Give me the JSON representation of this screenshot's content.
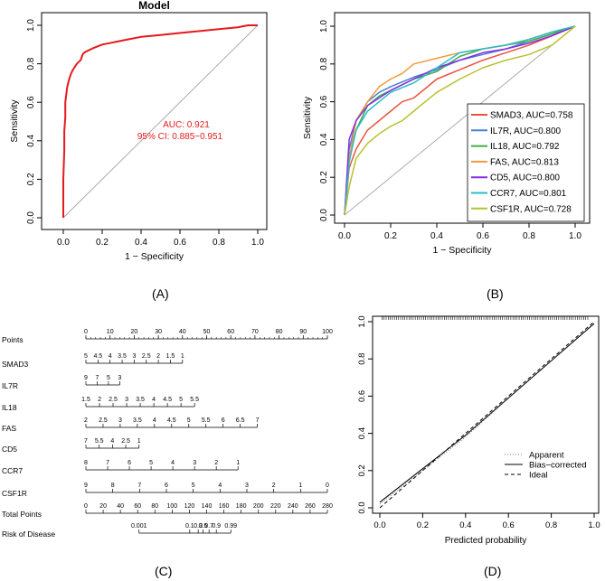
{
  "panel_labels": {
    "a": "(A)",
    "b": "(B)",
    "c": "(C)",
    "d": "(D)"
  },
  "chart_data": [
    {
      "id": "A",
      "type": "line",
      "title": "Model",
      "xlabel": "1 − Specificity",
      "ylabel": "Sensitivity",
      "xlim": [
        0,
        1
      ],
      "ylim": [
        0,
        1
      ],
      "xticks": [
        "0.0",
        "0.2",
        "0.4",
        "0.6",
        "0.8",
        "1.0"
      ],
      "yticks": [
        "0.0",
        "0.2",
        "0.4",
        "0.6",
        "0.8",
        "1.0"
      ],
      "series": [
        {
          "name": "Model",
          "color": "#e41a1c",
          "x": [
            0,
            0,
            0.005,
            0.005,
            0.01,
            0.01,
            0.02,
            0.03,
            0.04,
            0.05,
            0.07,
            0.09,
            0.1,
            0.11,
            0.15,
            0.2,
            0.25,
            0.3,
            0.35,
            0.4,
            0.5,
            0.6,
            0.7,
            0.8,
            0.9,
            0.95,
            1.0
          ],
          "y": [
            0,
            0.2,
            0.35,
            0.45,
            0.52,
            0.6,
            0.68,
            0.72,
            0.75,
            0.77,
            0.8,
            0.82,
            0.85,
            0.86,
            0.88,
            0.9,
            0.91,
            0.92,
            0.93,
            0.94,
            0.95,
            0.96,
            0.97,
            0.98,
            0.99,
            1.0,
            1.0
          ]
        }
      ],
      "annotations": {
        "auc": "AUC: 0.921",
        "ci": "95% CI: 0.885−0.951",
        "color": "#e41a1c"
      }
    },
    {
      "id": "B",
      "type": "line",
      "title": "",
      "xlabel": "1 − Specificity",
      "ylabel": "Sensitivity",
      "xlim": [
        0,
        1
      ],
      "ylim": [
        0,
        1
      ],
      "xticks": [
        "0.0",
        "0.2",
        "0.4",
        "0.6",
        "0.8",
        "1.0"
      ],
      "yticks": [
        "0.0",
        "0.2",
        "0.4",
        "0.6",
        "0.8",
        "1.0"
      ],
      "series": [
        {
          "name": "SMAD3, AUC=0.758",
          "color": "#e8533f",
          "x": [
            0,
            0.02,
            0.05,
            0.1,
            0.15,
            0.2,
            0.25,
            0.3,
            0.35,
            0.4,
            0.5,
            0.6,
            0.7,
            0.8,
            0.9,
            1.0
          ],
          "y": [
            0,
            0.25,
            0.35,
            0.45,
            0.5,
            0.55,
            0.6,
            0.62,
            0.67,
            0.72,
            0.77,
            0.82,
            0.86,
            0.9,
            0.95,
            1.0
          ]
        },
        {
          "name": "IL7R, AUC=0.800",
          "color": "#4a7fd6",
          "x": [
            0,
            0.02,
            0.05,
            0.1,
            0.15,
            0.2,
            0.3,
            0.4,
            0.5,
            0.6,
            0.7,
            0.8,
            0.9,
            1.0
          ],
          "y": [
            0,
            0.35,
            0.5,
            0.6,
            0.65,
            0.68,
            0.73,
            0.77,
            0.82,
            0.85,
            0.88,
            0.92,
            0.96,
            1.0
          ]
        },
        {
          "name": "IL18, AUC=0.792",
          "color": "#3fae49",
          "x": [
            0,
            0.02,
            0.05,
            0.1,
            0.15,
            0.2,
            0.3,
            0.4,
            0.5,
            0.6,
            0.7,
            0.8,
            0.9,
            1.0
          ],
          "y": [
            0,
            0.3,
            0.45,
            0.58,
            0.63,
            0.66,
            0.72,
            0.76,
            0.84,
            0.88,
            0.9,
            0.92,
            0.96,
            1.0
          ]
        },
        {
          "name": "FAS, AUC=0.813",
          "color": "#f29a3a",
          "x": [
            0,
            0.02,
            0.05,
            0.1,
            0.15,
            0.2,
            0.25,
            0.3,
            0.4,
            0.5,
            0.6,
            0.7,
            0.8,
            0.9,
            1.0
          ],
          "y": [
            0,
            0.3,
            0.5,
            0.6,
            0.68,
            0.72,
            0.75,
            0.8,
            0.83,
            0.86,
            0.88,
            0.9,
            0.93,
            0.97,
            1.0
          ]
        },
        {
          "name": "CD5, AUC=0.800",
          "color": "#8a2be2",
          "x": [
            0,
            0.02,
            0.05,
            0.1,
            0.15,
            0.2,
            0.3,
            0.4,
            0.5,
            0.6,
            0.7,
            0.8,
            0.9,
            1.0
          ],
          "y": [
            0,
            0.4,
            0.5,
            0.58,
            0.62,
            0.66,
            0.72,
            0.78,
            0.82,
            0.86,
            0.88,
            0.91,
            0.95,
            1.0
          ]
        },
        {
          "name": "CCR7, AUC=0.801",
          "color": "#2bbcc7",
          "x": [
            0,
            0.02,
            0.05,
            0.1,
            0.15,
            0.2,
            0.3,
            0.4,
            0.5,
            0.6,
            0.7,
            0.8,
            0.9,
            1.0
          ],
          "y": [
            0,
            0.28,
            0.45,
            0.55,
            0.6,
            0.65,
            0.7,
            0.78,
            0.86,
            0.88,
            0.9,
            0.93,
            0.97,
            1.0
          ]
        },
        {
          "name": "CSF1R, AUC=0.728",
          "color": "#b5c22e",
          "x": [
            0,
            0.02,
            0.05,
            0.1,
            0.15,
            0.2,
            0.25,
            0.3,
            0.35,
            0.4,
            0.5,
            0.6,
            0.7,
            0.8,
            0.9,
            1.0
          ],
          "y": [
            0,
            0.15,
            0.3,
            0.38,
            0.43,
            0.47,
            0.5,
            0.55,
            0.6,
            0.65,
            0.72,
            0.78,
            0.82,
            0.85,
            0.9,
            1.0
          ]
        }
      ]
    },
    {
      "id": "C",
      "type": "nomogram",
      "rows": [
        {
          "label": "Points",
          "ticks": [
            "0",
            "10",
            "20",
            "30",
            "40",
            "50",
            "60",
            "70",
            "80",
            "90",
            "100"
          ],
          "start": 0,
          "end": 100,
          "minor": true
        },
        {
          "label": "SMAD3",
          "ticks": [
            "5",
            "4.5",
            "4",
            "3.5",
            "3",
            "2.5",
            "2",
            "1.5",
            "1"
          ],
          "start": 0,
          "end": 40
        },
        {
          "label": "IL7R",
          "ticks": [
            "9",
            "7",
            "5",
            "3"
          ],
          "start": 0,
          "end": 14
        },
        {
          "label": "IL18",
          "ticks": [
            "1.5",
            "2",
            "2.5",
            "3",
            "3.5",
            "4",
            "4.5",
            "5",
            "5.5"
          ],
          "start": 0,
          "end": 45
        },
        {
          "label": "FAS",
          "ticks": [
            "2",
            "2.5",
            "3",
            "3.5",
            "4",
            "4.5",
            "5",
            "5.5",
            "6",
            "6.5",
            "7"
          ],
          "start": 0,
          "end": 71
        },
        {
          "label": "CD5",
          "ticks": [
            "7",
            "5.5",
            "4",
            "2.5",
            "1"
          ],
          "start": 0,
          "end": 22
        },
        {
          "label": "CCR7",
          "ticks": [
            "8",
            "7",
            "6",
            "5",
            "4",
            "3",
            "2",
            "1"
          ],
          "start": 0,
          "end": 63
        },
        {
          "label": "CSF1R",
          "ticks": [
            "9",
            "8",
            "7",
            "6",
            "5",
            "4",
            "3",
            "2",
            "1",
            "0"
          ],
          "start": 0,
          "end": 100
        },
        {
          "label": "Total Points",
          "ticks": [
            "0",
            "20",
            "40",
            "60",
            "80",
            "100",
            "120",
            "140",
            "160",
            "180",
            "200",
            "220",
            "240",
            "260",
            "280"
          ],
          "start": 0,
          "end": 100
        },
        {
          "label": "Risk of Disease",
          "ticks": [
            "0.001",
            "0.1",
            "0.3",
            "0.5",
            "0.7",
            "0.9",
            "0.99"
          ],
          "start": 22,
          "end": 60,
          "tick_positions": [
            22,
            43,
            46.5,
            48.5,
            51,
            54,
            60
          ]
        }
      ]
    },
    {
      "id": "D",
      "type": "line",
      "title": "",
      "xlabel": "Predicted probability",
      "ylabel": "",
      "xlim": [
        0,
        1
      ],
      "ylim": [
        0,
        1
      ],
      "xticks": [
        "0.0",
        "0.2",
        "0.4",
        "0.6",
        "0.8",
        "1.0"
      ],
      "yticks": [
        "0.0",
        "0.2",
        "0.4",
        "0.6",
        "0.8",
        "1.0"
      ],
      "series": [
        {
          "name": "Apparent",
          "style": "dotted",
          "x": [
            0,
            0.2,
            0.4,
            0.6,
            0.8,
            1.0
          ],
          "y": [
            0.02,
            0.2,
            0.38,
            0.59,
            0.79,
            0.99
          ]
        },
        {
          "name": "Bias−corrected",
          "style": "solid",
          "x": [
            0,
            0.2,
            0.4,
            0.6,
            0.8,
            1.0
          ],
          "y": [
            0.03,
            0.21,
            0.39,
            0.59,
            0.79,
            0.99
          ]
        },
        {
          "name": "Ideal",
          "style": "dashed",
          "x": [
            0,
            1
          ],
          "y": [
            0,
            1
          ]
        }
      ]
    }
  ]
}
